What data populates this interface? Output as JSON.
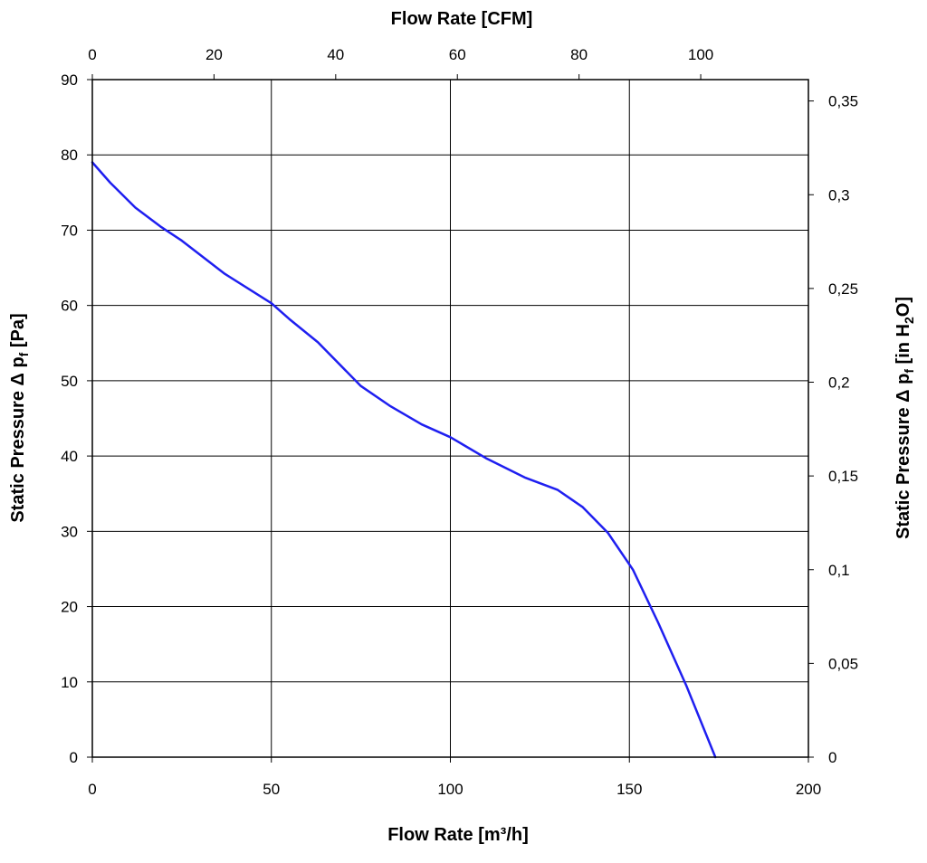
{
  "chart_data": {
    "type": "line",
    "title": "",
    "x_bottom": {
      "label": "Flow Rate [m³/h]",
      "range": [
        0,
        200
      ],
      "ticks": [
        0,
        50,
        100,
        150,
        200
      ],
      "tick_labels": [
        "0",
        "50",
        "100",
        "150",
        "200"
      ]
    },
    "x_top": {
      "label": "Flow Rate [CFM]",
      "range": [
        0,
        117.7
      ],
      "ticks": [
        0,
        20,
        40,
        60,
        80,
        100
      ],
      "tick_labels": [
        "0",
        "20",
        "40",
        "60",
        "80",
        "100"
      ]
    },
    "y_left": {
      "label_main": "Static Pressure Δ p",
      "label_sub": "f",
      "label_unit": " [Pa]",
      "range": [
        0,
        90
      ],
      "ticks": [
        0,
        10,
        20,
        30,
        40,
        50,
        60,
        70,
        80,
        90
      ],
      "tick_labels": [
        "0",
        "10",
        "20",
        "30",
        "40",
        "50",
        "60",
        "70",
        "80",
        "90"
      ]
    },
    "y_right": {
      "label_main": "Static Pressure Δ p",
      "label_sub": "f",
      "label_unit_pre": " [in H",
      "label_unit_sub": "2",
      "label_unit_post": "O]",
      "range": [
        0,
        0.3614
      ],
      "ticks": [
        0,
        0.05,
        0.1,
        0.15,
        0.2,
        0.25,
        0.3,
        0.35
      ],
      "tick_labels": [
        "0",
        "0,05",
        "0,1",
        "0,15",
        "0,2",
        "0,25",
        "0,3",
        "0,35"
      ]
    },
    "grid": true,
    "series": [
      {
        "name": "Static Pressure",
        "color": "#1f1ff0",
        "x": [
          0,
          5,
          12,
          19,
          25,
          37,
          50,
          55,
          63,
          75,
          83,
          92,
          100,
          110,
          121,
          130,
          137,
          144,
          151,
          158,
          166,
          174
        ],
        "y": [
          79,
          76.3,
          73,
          70.5,
          68.6,
          64.2,
          60.3,
          58.2,
          55.1,
          49.3,
          46.7,
          44.2,
          42.5,
          39.7,
          37.1,
          35.5,
          33.2,
          29.8,
          24.9,
          17.9,
          9.4,
          0
        ]
      }
    ]
  }
}
